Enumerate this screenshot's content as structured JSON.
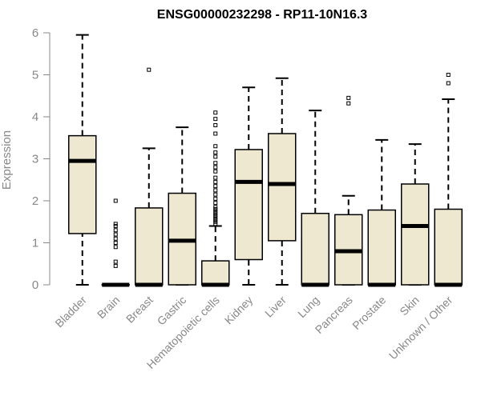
{
  "chart_data": {
    "type": "boxplot",
    "title": "ENSG00000232298 - RP11-10N16.3",
    "xlabel": "",
    "ylabel": "Expression",
    "ylim": [
      0,
      6
    ],
    "yticks": [
      0,
      1,
      2,
      3,
      4,
      5,
      6
    ],
    "grid": false,
    "legend": "none",
    "colors": {
      "box_fill": "#EEE8D0",
      "stroke": "#000000",
      "axis": "#888888"
    },
    "categories": [
      "Bladder",
      "Brain",
      "Breast",
      "Gastric",
      "Hematopoietic cells",
      "Kidney",
      "Liver",
      "Lung",
      "Pancreas",
      "Prostate",
      "Skin",
      "Unknown / Other"
    ],
    "boxes": [
      {
        "min": 0,
        "q1": 1.22,
        "median": 2.95,
        "q3": 3.55,
        "max": 5.95,
        "outliers": []
      },
      {
        "min": 0,
        "q1": 0,
        "median": 0,
        "q3": 0,
        "max": 0,
        "outliers": [
          0.45,
          0.55,
          0.9,
          1.0,
          1.1,
          1.2,
          1.3,
          1.4,
          1.45,
          2.0
        ]
      },
      {
        "min": 0,
        "q1": 0,
        "median": 0,
        "q3": 1.83,
        "max": 3.25,
        "outliers": [
          5.12
        ]
      },
      {
        "min": 0,
        "q1": 0,
        "median": 1.05,
        "q3": 2.18,
        "max": 3.75,
        "outliers": []
      },
      {
        "min": 0,
        "q1": 0,
        "median": 0,
        "q3": 0.57,
        "max": 1.4,
        "outliers": [
          1.45,
          1.5,
          1.55,
          1.6,
          1.65,
          1.7,
          1.75,
          1.8,
          1.85,
          1.95,
          2.05,
          2.15,
          2.25,
          2.35,
          2.45,
          2.55,
          2.7,
          2.8,
          2.9,
          3.05,
          3.15,
          3.3,
          3.6,
          3.8,
          3.95,
          4.1
        ]
      },
      {
        "min": 0,
        "q1": 0.6,
        "median": 2.45,
        "q3": 3.22,
        "max": 4.7,
        "outliers": []
      },
      {
        "min": 0,
        "q1": 1.05,
        "median": 2.4,
        "q3": 3.6,
        "max": 4.92,
        "outliers": []
      },
      {
        "min": 0,
        "q1": 0,
        "median": 0,
        "q3": 1.7,
        "max": 4.15,
        "outliers": []
      },
      {
        "min": 0,
        "q1": 0,
        "median": 0.8,
        "q3": 1.67,
        "max": 2.12,
        "outliers": [
          4.32,
          4.45
        ]
      },
      {
        "min": 0,
        "q1": 0,
        "median": 0,
        "q3": 1.78,
        "max": 3.45,
        "outliers": []
      },
      {
        "min": 0,
        "q1": 0,
        "median": 1.4,
        "q3": 2.4,
        "max": 3.35,
        "outliers": []
      },
      {
        "min": 0,
        "q1": 0,
        "median": 0,
        "q3": 1.8,
        "max": 4.42,
        "outliers": [
          4.8,
          5.0
        ]
      }
    ]
  }
}
